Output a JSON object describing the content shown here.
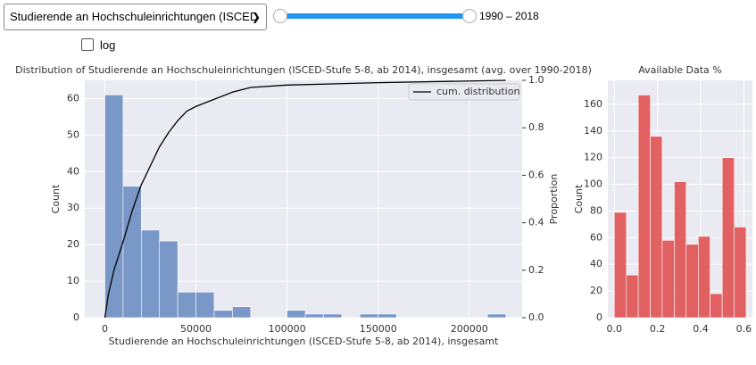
{
  "controls": {
    "dropdown": "Studierende an Hochschuleinrichtungen (ISCED",
    "slider_label": "1990 – 2018",
    "checkbox_label": "log"
  },
  "chart_data": [
    {
      "type": "histogram",
      "title": "Distribution of Studierende an Hochschuleinrichtungen (ISCED-Stufe 5-8, ab 2014), insgesamt (avg. over 1990-2018)",
      "xlabel": "Studierende an Hochschuleinrichtungen (ISCED-Stufe 5-8, ab 2014), insgesamt",
      "ylabel": "Count",
      "y2label": "Proportion",
      "bins": [
        0,
        10000,
        20000,
        30000,
        40000,
        50000,
        60000,
        70000,
        80000,
        90000,
        100000,
        110000,
        120000,
        130000,
        140000,
        150000,
        160000,
        170000,
        180000,
        190000,
        200000,
        210000,
        220000
      ],
      "values": [
        61,
        36,
        24,
        21,
        7,
        7,
        2,
        3,
        0,
        0,
        2,
        1,
        1,
        0,
        1,
        1,
        0,
        0,
        0,
        0,
        0,
        1
      ],
      "color": "#7393c4",
      "xlim": [
        -11000,
        229000
      ],
      "xticks": [
        0,
        50000,
        100000,
        150000,
        200000
      ],
      "ylim": [
        0,
        65
      ],
      "yticks": [
        0,
        10,
        20,
        30,
        40,
        50,
        60
      ],
      "y2lim": [
        0,
        1
      ],
      "y2ticks": [
        {
          "value": 0,
          "label": "0.0"
        },
        {
          "value": 0.2,
          "label": "0.2"
        },
        {
          "value": 0.4,
          "label": "0.4"
        },
        {
          "value": 0.6,
          "label": "0.6"
        },
        {
          "value": 0.8,
          "label": "0.8"
        },
        {
          "value": 1,
          "label": "1.0"
        }
      ],
      "grid": true,
      "legend": "upper right",
      "series": [
        {
          "name": "cum. distribution",
          "type": "line",
          "axis": "y2",
          "color": "#000000",
          "x": [
            0,
            2000,
            5000,
            10000,
            15000,
            20000,
            25000,
            30000,
            35000,
            40000,
            45000,
            50000,
            60000,
            70000,
            80000,
            100000,
            150000,
            220000
          ],
          "values": [
            0,
            0.1,
            0.2,
            0.32,
            0.45,
            0.56,
            0.64,
            0.72,
            0.78,
            0.83,
            0.87,
            0.89,
            0.92,
            0.95,
            0.97,
            0.98,
            0.99,
            1
          ]
        }
      ]
    },
    {
      "type": "histogram",
      "title": "Available Data %",
      "ylabel": "Count",
      "bins": [
        0,
        0.056,
        0.111,
        0.167,
        0.222,
        0.278,
        0.333,
        0.389,
        0.444,
        0.5,
        0.556,
        0.611
      ],
      "values": [
        79,
        32,
        167,
        136,
        58,
        102,
        55,
        61,
        18,
        120,
        68
      ],
      "color": "#e05a5a",
      "xlim": [
        -0.03,
        0.64
      ],
      "xticks": [
        {
          "value": 0,
          "label": "0.0"
        },
        {
          "value": 0.2,
          "label": "0.2"
        },
        {
          "value": 0.4,
          "label": "0.4"
        },
        {
          "value": 0.6,
          "label": "0.6"
        }
      ],
      "ylim": [
        0,
        178
      ],
      "yticks": [
        0,
        20,
        40,
        60,
        80,
        100,
        120,
        140,
        160
      ],
      "grid": true
    }
  ]
}
